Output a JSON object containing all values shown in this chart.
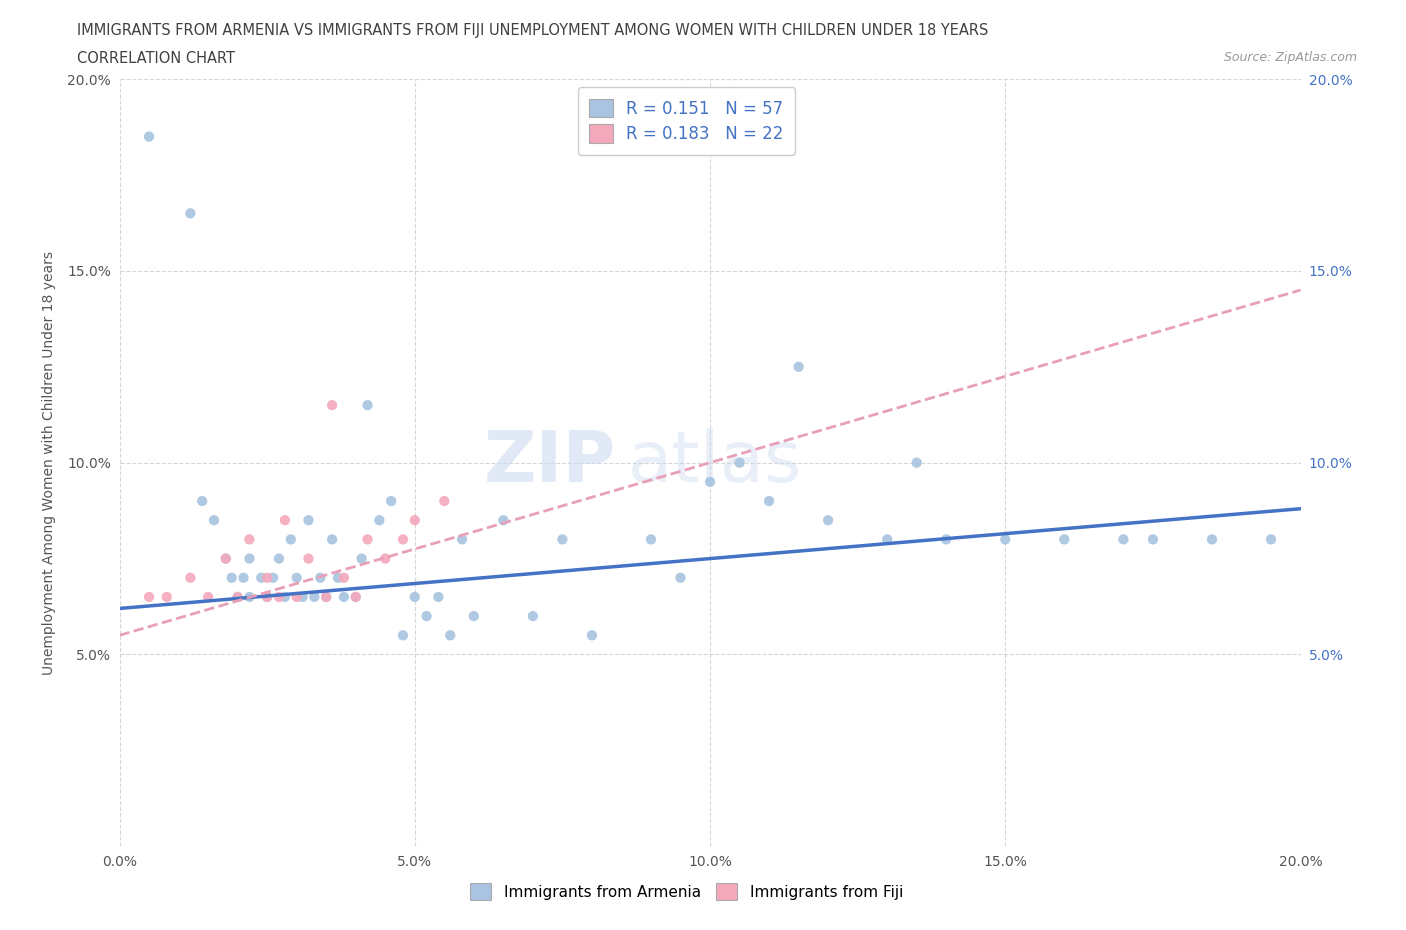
{
  "title_line1": "IMMIGRANTS FROM ARMENIA VS IMMIGRANTS FROM FIJI UNEMPLOYMENT AMONG WOMEN WITH CHILDREN UNDER 18 YEARS",
  "title_line2": "CORRELATION CHART",
  "source_text": "Source: ZipAtlas.com",
  "ylabel": "Unemployment Among Women with Children Under 18 years",
  "xlim": [
    0.0,
    0.2
  ],
  "ylim": [
    0.0,
    0.2
  ],
  "xticks": [
    0.0,
    0.05,
    0.1,
    0.15,
    0.2
  ],
  "yticks": [
    0.0,
    0.05,
    0.1,
    0.15,
    0.2
  ],
  "armenia_color": "#a8c4e0",
  "fiji_color": "#f4a8bc",
  "armenia_line_color": "#4472c4",
  "fiji_line_color": "#e8a0b8",
  "R_armenia": 0.151,
  "N_armenia": 57,
  "R_fiji": 0.183,
  "N_fiji": 22,
  "legend_label_armenia": "Immigrants from Armenia",
  "legend_label_fiji": "Immigrants from Fiji",
  "watermark_zip": "ZIP",
  "watermark_atlas": "atlas",
  "background_color": "#ffffff",
  "grid_color": "#cccccc",
  "title_color": "#404040",
  "stats_color": "#4472c4",
  "armenia_scatter_x": [
    0.005,
    0.012,
    0.014,
    0.016,
    0.018,
    0.019,
    0.02,
    0.021,
    0.022,
    0.022,
    0.024,
    0.025,
    0.026,
    0.027,
    0.028,
    0.029,
    0.03,
    0.031,
    0.032,
    0.033,
    0.034,
    0.035,
    0.036,
    0.037,
    0.038,
    0.04,
    0.041,
    0.042,
    0.044,
    0.046,
    0.048,
    0.05,
    0.052,
    0.054,
    0.056,
    0.058,
    0.06,
    0.065,
    0.07,
    0.075,
    0.08,
    0.09,
    0.095,
    0.1,
    0.105,
    0.11,
    0.115,
    0.12,
    0.13,
    0.135,
    0.14,
    0.15,
    0.16,
    0.17,
    0.175,
    0.185,
    0.195
  ],
  "armenia_scatter_y": [
    0.185,
    0.165,
    0.09,
    0.085,
    0.075,
    0.07,
    0.065,
    0.07,
    0.065,
    0.075,
    0.07,
    0.065,
    0.07,
    0.075,
    0.065,
    0.08,
    0.07,
    0.065,
    0.085,
    0.065,
    0.07,
    0.065,
    0.08,
    0.07,
    0.065,
    0.065,
    0.075,
    0.115,
    0.085,
    0.09,
    0.055,
    0.065,
    0.06,
    0.065,
    0.055,
    0.08,
    0.06,
    0.085,
    0.06,
    0.08,
    0.055,
    0.08,
    0.07,
    0.095,
    0.1,
    0.09,
    0.125,
    0.085,
    0.08,
    0.1,
    0.08,
    0.08,
    0.08,
    0.08,
    0.08,
    0.08,
    0.08
  ],
  "fiji_scatter_x": [
    0.005,
    0.008,
    0.012,
    0.015,
    0.018,
    0.02,
    0.022,
    0.025,
    0.025,
    0.027,
    0.028,
    0.03,
    0.032,
    0.035,
    0.036,
    0.038,
    0.04,
    0.042,
    0.045,
    0.048,
    0.05,
    0.055
  ],
  "fiji_scatter_y": [
    0.065,
    0.065,
    0.07,
    0.065,
    0.075,
    0.065,
    0.08,
    0.065,
    0.07,
    0.065,
    0.085,
    0.065,
    0.075,
    0.065,
    0.115,
    0.07,
    0.065,
    0.08,
    0.075,
    0.08,
    0.085,
    0.09
  ],
  "armenia_line_x0": 0.0,
  "armenia_line_y0": 0.062,
  "armenia_line_x1": 0.2,
  "armenia_line_y1": 0.088,
  "fiji_line_x0": 0.0,
  "fiji_line_y0": 0.055,
  "fiji_line_x1": 0.2,
  "fiji_line_y1": 0.145
}
